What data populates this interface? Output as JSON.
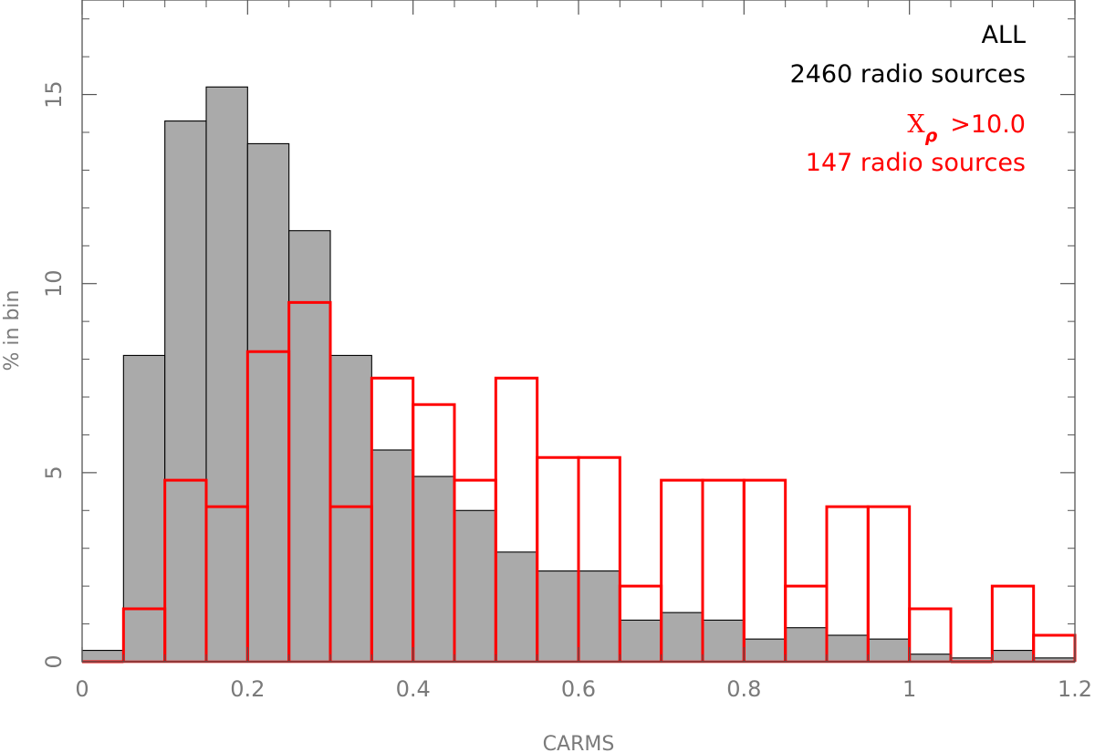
{
  "chart_data": {
    "type": "bar",
    "xlabel": "CARMS",
    "ylabel": "% in bin",
    "xlim": [
      0,
      1.2
    ],
    "ylim": [
      0,
      17.5
    ],
    "bin_width": 0.05,
    "x_ticks": [
      0,
      0.2,
      0.4,
      0.6,
      0.8,
      1,
      1.2
    ],
    "x_tick_labels": [
      "0",
      "0.2",
      "0.4",
      "0.6",
      "0.8",
      "1",
      "1.2"
    ],
    "y_ticks": [
      0,
      5,
      10,
      15
    ],
    "y_tick_labels": [
      "0",
      "5",
      "10",
      "15"
    ],
    "grid": false,
    "series": [
      {
        "style": "filled",
        "color": "#aaaaaa",
        "edge_color": "#000000",
        "bin_starts": [
          0,
          0.05,
          0.1,
          0.15,
          0.2,
          0.25,
          0.3,
          0.35,
          0.4,
          0.45,
          0.5,
          0.55,
          0.6,
          0.65,
          0.7,
          0.75,
          0.8,
          0.85,
          0.9,
          0.95,
          1.0,
          1.05,
          1.1,
          1.15
        ],
        "values": [
          0.3,
          8.1,
          14.3,
          15.2,
          13.7,
          11.4,
          8.1,
          5.6,
          4.9,
          4.0,
          2.9,
          2.4,
          2.4,
          1.1,
          1.3,
          1.1,
          0.6,
          0.9,
          0.7,
          0.6,
          0.2,
          0.1,
          0.3,
          0.1
        ]
      },
      {
        "style": "step",
        "color": "#ff0000",
        "bin_starts": [
          0,
          0.05,
          0.1,
          0.15,
          0.2,
          0.25,
          0.3,
          0.35,
          0.4,
          0.45,
          0.5,
          0.55,
          0.6,
          0.65,
          0.7,
          0.75,
          0.8,
          0.85,
          0.9,
          0.95,
          1.0,
          1.05,
          1.1,
          1.15
        ],
        "values": [
          0.0,
          1.4,
          4.8,
          4.1,
          8.2,
          9.5,
          4.1,
          7.5,
          6.8,
          4.8,
          7.5,
          5.4,
          5.4,
          2.0,
          4.8,
          4.8,
          4.8,
          2.0,
          4.1,
          4.1,
          1.4,
          0.0,
          2.0,
          0.7
        ]
      }
    ],
    "annotations": {
      "all_label": "ALL",
      "all_count": "2460 radio sources",
      "cut_symbol": "X",
      "cut_subscript": "ρ",
      "cut_threshold": ">10.0",
      "cut_count": "147 radio sources",
      "all_color": "#000000",
      "cut_color": "#ff0000",
      "placement": "top-right"
    }
  }
}
